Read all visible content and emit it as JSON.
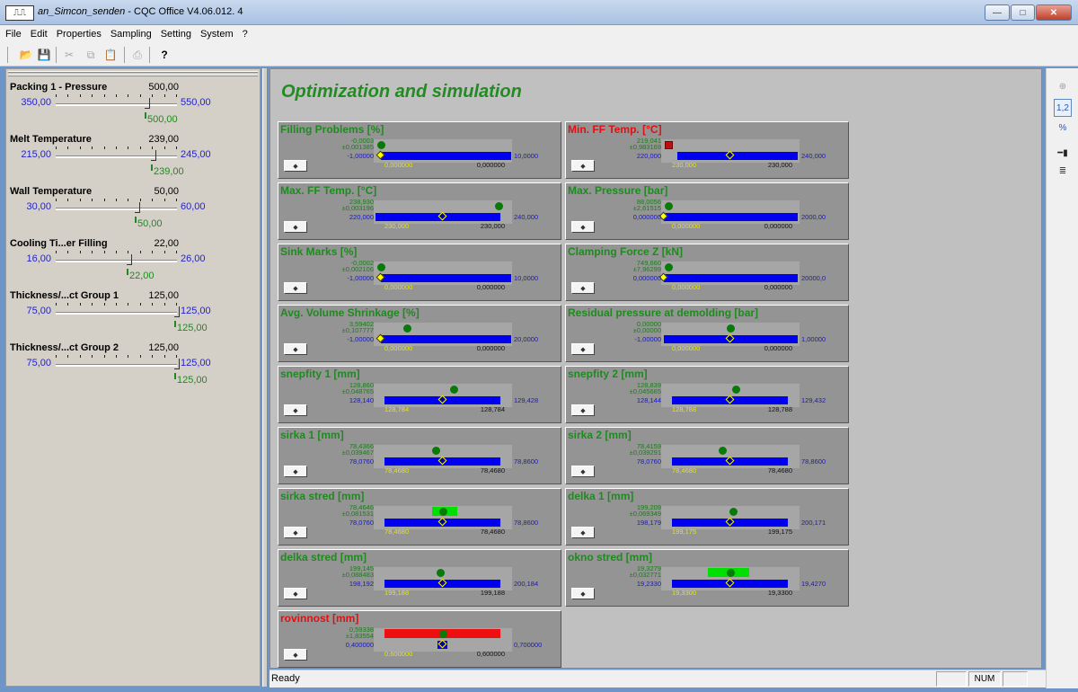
{
  "window": {
    "title_italic": "an_Simcon_senden",
    "title_rest": " - CQC Office V4.06.012.  4",
    "minimize_label": "—",
    "maximize_label": "□",
    "close_label": "✕"
  },
  "menu": [
    "File",
    "Edit",
    "Properties",
    "Sampling",
    "Setting",
    "System",
    "?"
  ],
  "toolbar_icons": {
    "open": "📂",
    "save": "💾",
    "cut": "✂",
    "copy": "⧉",
    "paste": "📋",
    "print": "⎙",
    "help": "?"
  },
  "parameters": [
    {
      "name": "Packing 1 - Pressure",
      "value": "500,00",
      "min": "350,00",
      "max": "550,00",
      "current": "500,00",
      "fraction": 0.75
    },
    {
      "name": "Melt Temperature",
      "value": "239,00",
      "min": "215,00",
      "max": "245,00",
      "current": "239,00",
      "fraction": 0.8
    },
    {
      "name": "Wall Temperature",
      "value": "50,00",
      "min": "30,00",
      "max": "60,00",
      "current": "50,00",
      "fraction": 0.667
    },
    {
      "name": "Cooling Ti...er Filling",
      "value": "22,00",
      "min": "16,00",
      "max": "26,00",
      "current": "22,00",
      "fraction": 0.6
    },
    {
      "name": "Thickness/...ct Group 1",
      "value": "125,00",
      "min": "75,00",
      "max": "125,00",
      "current": "125,00",
      "fraction": 1.0
    },
    {
      "name": "Thickness/...ct Group 2",
      "value": "125,00",
      "min": "75,00",
      "max": "125,00",
      "current": "125,00",
      "fraction": 1.0
    }
  ],
  "page_title": "Optimization and simulation",
  "panels": [
    {
      "title": "Filling Problems [%]",
      "title_color": "green",
      "v1": "-0,0003",
      "v2": "±0,001385",
      "min": "-1,00000",
      "max": "10,0000",
      "yellow": "0,000000",
      "black": "0,000000",
      "dot": 0.05,
      "marker": "dot",
      "diamond": 0.05,
      "blue": [
        0.05,
        0.99
      ]
    },
    {
      "title": "Min. FF Temp. [°C]",
      "title_color": "red",
      "v1": "219,041",
      "v2": "±0,983169",
      "min": "220,000",
      "max": "240,000",
      "yellow": "230,000",
      "black": "230,000",
      "dot": 0.05,
      "marker": "square",
      "diamond": 0.5,
      "blue": [
        0.12,
        0.99
      ]
    },
    {
      "title": "Max. FF Temp. [°C]",
      "title_color": "green",
      "v1": "238,930",
      "v2": "±0,003196",
      "min": "220,000",
      "max": "240,000",
      "yellow": "230,000",
      "black": "230,000",
      "dot": 0.9,
      "marker": "dot",
      "diamond": 0.5,
      "blue": [
        0.01,
        0.91
      ]
    },
    {
      "title": "Max. Pressure [bar]",
      "title_color": "green",
      "v1": "88,0056",
      "v2": "±2,61515",
      "min": "0,000000",
      "max": "2000,00",
      "yellow": "0,000000",
      "black": "0,000000",
      "dot": 0.05,
      "marker": "dot",
      "diamond": 0.02,
      "blue": [
        0.02,
        0.99
      ]
    },
    {
      "title": "Sink Marks [%]",
      "title_color": "green",
      "v1": "-0,0002",
      "v2": "±0,002106",
      "min": "-1,00000",
      "max": "10,0000",
      "yellow": "0,000000",
      "black": "0,000000",
      "dot": 0.05,
      "marker": "dot",
      "diamond": 0.05,
      "blue": [
        0.05,
        0.99
      ]
    },
    {
      "title": "Clamping Force Z [kN]",
      "title_color": "green",
      "v1": "749,660",
      "v2": "±7,96299",
      "min": "0,000000",
      "max": "20000,0",
      "yellow": "0,000000",
      "black": "0,000000",
      "dot": 0.05,
      "marker": "dot",
      "diamond": 0.02,
      "blue": [
        0.02,
        0.99
      ]
    },
    {
      "title": "Avg. Volume Shrinkage [%]",
      "title_color": "green",
      "v1": "3,59402",
      "v2": "±0,107777",
      "min": "-1,00000",
      "max": "20,0000",
      "yellow": "0,000000",
      "black": "0,000000",
      "dot": 0.24,
      "marker": "dot",
      "diamond": 0.05,
      "blue": [
        0.05,
        0.99
      ]
    },
    {
      "title": "Residual pressure at demolding [bar]",
      "title_color": "green",
      "v1": "0,00000",
      "v2": "±0,00000",
      "min": "-1,00000",
      "max": "1,00000",
      "yellow": "0,000000",
      "black": "0,000000",
      "dot": 0.5,
      "marker": "dot",
      "diamond": 0.5,
      "blue": [
        0.02,
        0.99
      ]
    },
    {
      "title": "snepfity 1 [mm]",
      "title_color": "green",
      "v1": "128,860",
      "v2": "±0,048765",
      "min": "128,140",
      "max": "129,428",
      "yellow": "128,784",
      "black": "128,784",
      "dot": 0.58,
      "marker": "dot",
      "diamond": 0.5,
      "blue": [
        0.08,
        0.92
      ]
    },
    {
      "title": "snepfity 2 [mm]",
      "title_color": "green",
      "v1": "128,839",
      "v2": "±0,045665",
      "min": "128,144",
      "max": "129,432",
      "yellow": "128,788",
      "black": "128,788",
      "dot": 0.54,
      "marker": "dot",
      "diamond": 0.5,
      "blue": [
        0.08,
        0.92
      ]
    },
    {
      "title": "sirka 1 [mm]",
      "title_color": "green",
      "v1": "78,4366",
      "v2": "±0,039467",
      "min": "78,0760",
      "max": "78,8600",
      "yellow": "78,4680",
      "black": "78,4680",
      "dot": 0.45,
      "marker": "dot",
      "diamond": 0.5,
      "blue": [
        0.08,
        0.92
      ]
    },
    {
      "title": "sirka 2 [mm]",
      "title_color": "green",
      "v1": "78,4159",
      "v2": "±0,039291",
      "min": "78,0760",
      "max": "78,8600",
      "yellow": "78,4680",
      "black": "78,4680",
      "dot": 0.44,
      "marker": "dot",
      "diamond": 0.5,
      "blue": [
        0.08,
        0.92
      ]
    },
    {
      "title": "sirka stred [mm]",
      "title_color": "green",
      "v1": "78,4646",
      "v2": "±0,081531",
      "min": "78,0760",
      "max": "78,8600",
      "yellow": "78,4680",
      "black": "78,4680",
      "dot": 0.5,
      "marker": "dot",
      "diamond": 0.5,
      "blue": [
        0.08,
        0.92
      ],
      "green": [
        0.42,
        0.6
      ]
    },
    {
      "title": "delka 1 [mm]",
      "title_color": "green",
      "v1": "199,209",
      "v2": "±0,069349",
      "min": "198,179",
      "max": "200,171",
      "yellow": "199,175",
      "black": "199,175",
      "dot": 0.52,
      "marker": "dot",
      "diamond": 0.5,
      "blue": [
        0.08,
        0.92
      ]
    },
    {
      "title": "delka stred [mm]",
      "title_color": "green",
      "v1": "199,145",
      "v2": "±0,088483",
      "min": "198,192",
      "max": "200,184",
      "yellow": "199,188",
      "black": "199,188",
      "dot": 0.48,
      "marker": "dot",
      "diamond": 0.5,
      "blue": [
        0.08,
        0.92
      ]
    },
    {
      "title": "okno stred [mm]",
      "title_color": "green",
      "v1": "19,3279",
      "v2": "±0,032771",
      "min": "19,2330",
      "max": "19,4270",
      "yellow": "19,3300",
      "black": "19,3300",
      "dot": 0.5,
      "marker": "dot",
      "diamond": 0.5,
      "blue": [
        0.08,
        0.92
      ],
      "green": [
        0.34,
        0.64
      ]
    },
    {
      "title": "rovinnost [mm]",
      "title_color": "red",
      "v1": "0,59338",
      "v2": "±1,83554",
      "min": "0,400000",
      "max": "0,700000",
      "yellow": "0,600000",
      "black": "0,600000",
      "dot": 0.5,
      "marker": "dot",
      "diamond": 0.5,
      "blue": [
        0.46,
        0.53
      ],
      "red": [
        0.08,
        0.92
      ]
    }
  ],
  "panel_button_label": "◆",
  "status": {
    "text": "Ready",
    "num": "NUM"
  }
}
